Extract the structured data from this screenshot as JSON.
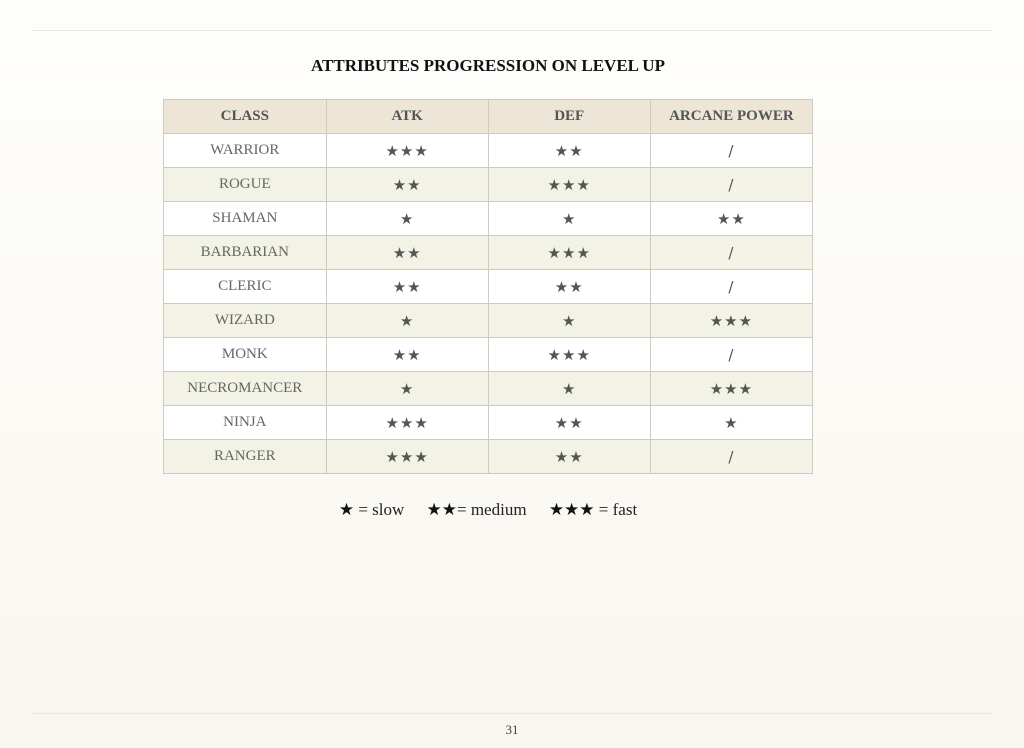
{
  "title": "ATTRIBUTES PROGRESSION ON LEVEL UP",
  "table": {
    "headers": [
      "CLASS",
      "ATK",
      "DEF",
      "ARCANE POWER"
    ],
    "rows": [
      [
        "WARRIOR",
        "★★★",
        "★★",
        "/"
      ],
      [
        "ROGUE",
        "★★",
        "★★★",
        "/"
      ],
      [
        "SHAMAN",
        "★",
        "★",
        "★★"
      ],
      [
        "BARBARIAN",
        "★★",
        "★★★",
        "/"
      ],
      [
        "CLERIC",
        "★★",
        "★★",
        "/"
      ],
      [
        "WIZARD",
        "★",
        "★",
        "★★★"
      ],
      [
        "MONK",
        "★★",
        "★★★",
        "/"
      ],
      [
        "NECROMANCER",
        "★",
        "★",
        "★★★"
      ],
      [
        "NINJA",
        "★★★",
        "★★",
        "★"
      ],
      [
        "RANGER",
        "★★★",
        "★★",
        "/"
      ]
    ]
  },
  "legend": [
    {
      "stars": "★",
      "label": " = slow"
    },
    {
      "stars": "★★",
      "label": "= medium"
    },
    {
      "stars": "★★★",
      "label": " = fast"
    }
  ],
  "page_number": "31"
}
